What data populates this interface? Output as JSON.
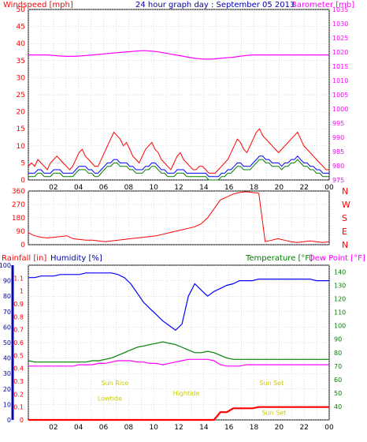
{
  "chart_data": [
    {
      "type": "line",
      "title": "24 hour graph day : September 05 2013",
      "y_left_label": "Windspeed [mph]",
      "y_right_label": "Barometer [mb]",
      "x_ticks": [
        "02",
        "04",
        "06",
        "08",
        "10",
        "12",
        "14",
        "16",
        "18",
        "20",
        "22",
        "00"
      ],
      "y_left_ticks": [
        "0",
        "5",
        "10",
        "15",
        "20",
        "25",
        "30",
        "35",
        "40",
        "45",
        "50"
      ],
      "y_right_ticks": [
        "975",
        "980",
        "985",
        "990",
        "995",
        "1000",
        "1005",
        "1010",
        "1015",
        "1020",
        "1025",
        "1030",
        "1035"
      ],
      "ylim_left": [
        0,
        50
      ],
      "ylim_right": [
        975,
        1035
      ],
      "series": [
        {
          "key": "gust",
          "color": "#ff0000",
          "values": [
            4,
            5,
            4,
            6,
            5,
            4,
            3,
            5,
            6,
            7,
            6,
            5,
            4,
            3,
            4,
            6,
            8,
            9,
            7,
            6,
            5,
            4,
            4,
            6,
            8,
            10,
            12,
            14,
            13,
            12,
            10,
            11,
            9,
            7,
            6,
            5,
            7,
            9,
            10,
            11,
            9,
            8,
            6,
            5,
            4,
            3,
            5,
            7,
            8,
            6,
            5,
            4,
            3,
            3,
            4,
            4,
            3,
            2,
            2,
            2,
            3,
            4,
            5,
            6,
            8,
            10,
            12,
            11,
            9,
            8,
            10,
            12,
            14,
            15,
            13,
            12,
            11,
            10,
            9,
            8,
            9,
            10,
            11,
            12,
            13,
            14,
            12,
            10,
            9,
            8,
            7,
            6,
            5,
            4,
            3,
            3
          ]
        },
        {
          "key": "wind",
          "color": "#0000ff",
          "values": [
            2,
            2,
            2,
            3,
            3,
            2,
            2,
            2,
            3,
            3,
            3,
            2,
            2,
            2,
            2,
            3,
            4,
            4,
            4,
            3,
            3,
            2,
            2,
            3,
            4,
            5,
            5,
            6,
            6,
            5,
            5,
            5,
            4,
            4,
            3,
            3,
            3,
            4,
            4,
            5,
            5,
            4,
            3,
            3,
            2,
            2,
            2,
            3,
            3,
            3,
            2,
            2,
            2,
            2,
            2,
            2,
            2,
            1,
            1,
            1,
            1,
            2,
            2,
            3,
            3,
            4,
            5,
            5,
            4,
            4,
            4,
            5,
            6,
            7,
            7,
            6,
            6,
            5,
            5,
            5,
            4,
            5,
            5,
            6,
            6,
            7,
            6,
            5,
            5,
            4,
            4,
            3,
            3,
            2,
            2,
            2
          ]
        },
        {
          "key": "wind_avg",
          "color": "#008000",
          "values": [
            1,
            1,
            1,
            2,
            2,
            1,
            1,
            1,
            2,
            2,
            2,
            1,
            1,
            1,
            1,
            2,
            3,
            3,
            3,
            2,
            2,
            1,
            1,
            2,
            3,
            4,
            4,
            5,
            5,
            4,
            4,
            4,
            3,
            3,
            2,
            2,
            2,
            3,
            3,
            4,
            4,
            3,
            2,
            2,
            1,
            1,
            1,
            2,
            2,
            2,
            1,
            1,
            1,
            1,
            1,
            1,
            1,
            0,
            0,
            0,
            0,
            1,
            1,
            2,
            2,
            3,
            4,
            4,
            3,
            3,
            3,
            4,
            5,
            6,
            6,
            5,
            5,
            4,
            4,
            4,
            3,
            4,
            4,
            5,
            5,
            6,
            5,
            4,
            4,
            3,
            3,
            2,
            2,
            1,
            1,
            1
          ]
        },
        {
          "key": "barometer",
          "color": "#ff00ff",
          "values": [
            1019,
            1019,
            1019,
            1019,
            1018.8,
            1018.6,
            1018.5,
            1018.5,
            1018.6,
            1018.8,
            1019,
            1019.2,
            1019.4,
            1019.6,
            1019.8,
            1020,
            1020.2,
            1020.4,
            1020.5,
            1020.4,
            1020.2,
            1019.8,
            1019.4,
            1019,
            1018.6,
            1018.2,
            1017.8,
            1017.6,
            1017.5,
            1017.6,
            1017.8,
            1018,
            1018.2,
            1018.5,
            1018.8,
            1019,
            1019,
            1019,
            1019,
            1019,
            1019,
            1019,
            1019,
            1019,
            1019,
            1019,
            1019,
            1019
          ]
        }
      ]
    },
    {
      "type": "scatter",
      "y_right_labels": [
        "N",
        "W",
        "S",
        "E",
        "N"
      ],
      "y_left_ticks": [
        "0",
        "90",
        "180",
        "270",
        "360"
      ],
      "ylim": [
        0,
        360
      ],
      "x_ticks": [
        "02",
        "04",
        "06",
        "08",
        "10",
        "12",
        "14",
        "16",
        "18",
        "20",
        "22",
        "00"
      ],
      "series": [
        {
          "key": "direction",
          "color": "#ff0000",
          "values": [
            80,
            60,
            50,
            45,
            50,
            55,
            60,
            40,
            35,
            30,
            30,
            25,
            20,
            25,
            30,
            35,
            40,
            45,
            50,
            55,
            60,
            70,
            80,
            90,
            100,
            110,
            120,
            140,
            180,
            240,
            300,
            320,
            340,
            350,
            355,
            350,
            345,
            20,
            30,
            40,
            30,
            20,
            15,
            20,
            25,
            20,
            15,
            20
          ]
        }
      ]
    },
    {
      "type": "line",
      "y_left_label": "Rainfall [in]",
      "y_left2_label": "Humidity [%]",
      "y_right_label": "Temperature [°F]",
      "y_right2_label": "Dew Point [°F]",
      "rain_ticks": [
        "0",
        "0.1",
        "0.2",
        "0.3",
        "0.4",
        "0.5",
        "0.6",
        "0.7",
        "0.8",
        "0.9",
        "1",
        "1.1"
      ],
      "humidity_ticks": [
        "0",
        "10",
        "20",
        "30",
        "40",
        "50",
        "60",
        "70",
        "80",
        "90",
        "100"
      ],
      "temp_ticks": [
        "40",
        "50",
        "60",
        "70",
        "80",
        "90",
        "100",
        "110",
        "120",
        "130",
        "140"
      ],
      "x_ticks": [
        "02",
        "04",
        "06",
        "08",
        "10",
        "12",
        "14",
        "16",
        "18",
        "20",
        "22",
        "00"
      ],
      "ylim_humidity": [
        0,
        100
      ],
      "ylim_rain": [
        0,
        1.2
      ],
      "ylim_temp": [
        30,
        145
      ],
      "annotations": [
        {
          "text": "Sun Rise",
          "hour": 6.9,
          "value": 0.27
        },
        {
          "text": "Lowtide",
          "hour": 6.5,
          "value": 0.15
        },
        {
          "text": "Hightide",
          "hour": 12.6,
          "value": 0.19
        },
        {
          "text": "Sun Set",
          "hour": 19.4,
          "value": 0.27
        },
        {
          "text": "Sun Set",
          "hour": 19.6,
          "value": 0.04
        }
      ],
      "series": [
        {
          "key": "humidity",
          "color": "#0000ff",
          "axis": "humidity",
          "values": [
            92,
            92,
            93,
            93,
            93,
            94,
            94,
            94,
            94,
            95,
            95,
            95,
            95,
            95,
            94,
            92,
            88,
            82,
            76,
            72,
            68,
            64,
            61,
            58,
            62,
            80,
            88,
            84,
            80,
            83,
            85,
            87,
            88,
            90,
            90,
            90,
            91,
            91,
            91,
            91,
            91,
            91,
            91,
            91,
            91,
            90,
            90,
            90
          ]
        },
        {
          "key": "temperature",
          "color": "#008000",
          "axis": "temp",
          "values": [
            74,
            73,
            73,
            73,
            73,
            73,
            73,
            73,
            73,
            73,
            74,
            74,
            75,
            76,
            78,
            80,
            82,
            84,
            85,
            86,
            87,
            88,
            87,
            86,
            84,
            82,
            80,
            80,
            81,
            80,
            78,
            76,
            75,
            75,
            75,
            75,
            75,
            75,
            75,
            75,
            75,
            75,
            75,
            75,
            75,
            75,
            75,
            75
          ]
        },
        {
          "key": "dew_point",
          "color": "#ff00ff",
          "axis": "temp",
          "values": [
            70,
            70,
            70,
            70,
            70,
            70,
            70,
            70,
            71,
            71,
            71,
            72,
            72,
            73,
            74,
            74,
            74,
            73,
            73,
            72,
            72,
            71,
            72,
            73,
            74,
            75,
            75,
            75,
            75,
            74,
            71,
            70,
            70,
            70,
            71,
            71,
            71,
            71,
            71,
            71,
            71,
            71,
            71,
            71,
            71,
            71,
            71,
            71
          ]
        },
        {
          "key": "rainfall",
          "color": "#ff0000",
          "axis": "rain",
          "values": [
            0,
            0,
            0,
            0,
            0,
            0,
            0,
            0,
            0,
            0,
            0,
            0,
            0,
            0,
            0,
            0,
            0,
            0,
            0,
            0,
            0,
            0,
            0,
            0,
            0,
            0,
            0,
            0,
            0,
            0,
            0.06,
            0.06,
            0.09,
            0.09,
            0.09,
            0.09,
            0.1,
            0.1,
            0.1,
            0.1,
            0.1,
            0.1,
            0.1,
            0.1,
            0.1,
            0.1,
            0.1,
            0.1
          ]
        }
      ]
    }
  ]
}
